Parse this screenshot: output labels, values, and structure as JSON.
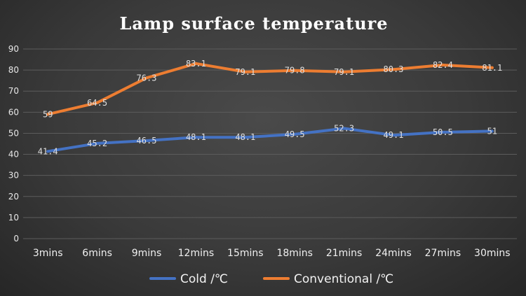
{
  "chart_data": {
    "type": "line",
    "title": "Lamp surface temperature",
    "categories": [
      "3mins",
      "6mins",
      "9mins",
      "12mins",
      "15mins",
      "18mins",
      "21mins",
      "24mins",
      "27mins",
      "30mins"
    ],
    "series": [
      {
        "name": "Cold /℃",
        "color": "#4472c4",
        "values": [
          41.4,
          45.2,
          46.5,
          48.1,
          48.1,
          49.5,
          52.3,
          49.1,
          50.5,
          51
        ],
        "labels": [
          "41.4",
          "45.2",
          "46.5",
          "48.1",
          "48.1",
          "49.5",
          "52.3",
          "49.1",
          "50.5",
          "51"
        ]
      },
      {
        "name": "Conventional /℃",
        "color": "#ed7d31",
        "values": [
          59,
          64.5,
          76.3,
          83.1,
          79.1,
          79.8,
          79.1,
          80.3,
          82.4,
          81.1
        ],
        "labels": [
          "59",
          "64.5",
          "76.3",
          "83.1",
          "79.1",
          "79.8",
          "79.1",
          "80.3",
          "82.4",
          "81.1"
        ]
      }
    ],
    "ylim": [
      0,
      90
    ],
    "yticks": [
      "0",
      "10",
      "20",
      "30",
      "40",
      "50",
      "60",
      "70",
      "80",
      "90"
    ],
    "grid": true,
    "legend_position": "bottom"
  }
}
